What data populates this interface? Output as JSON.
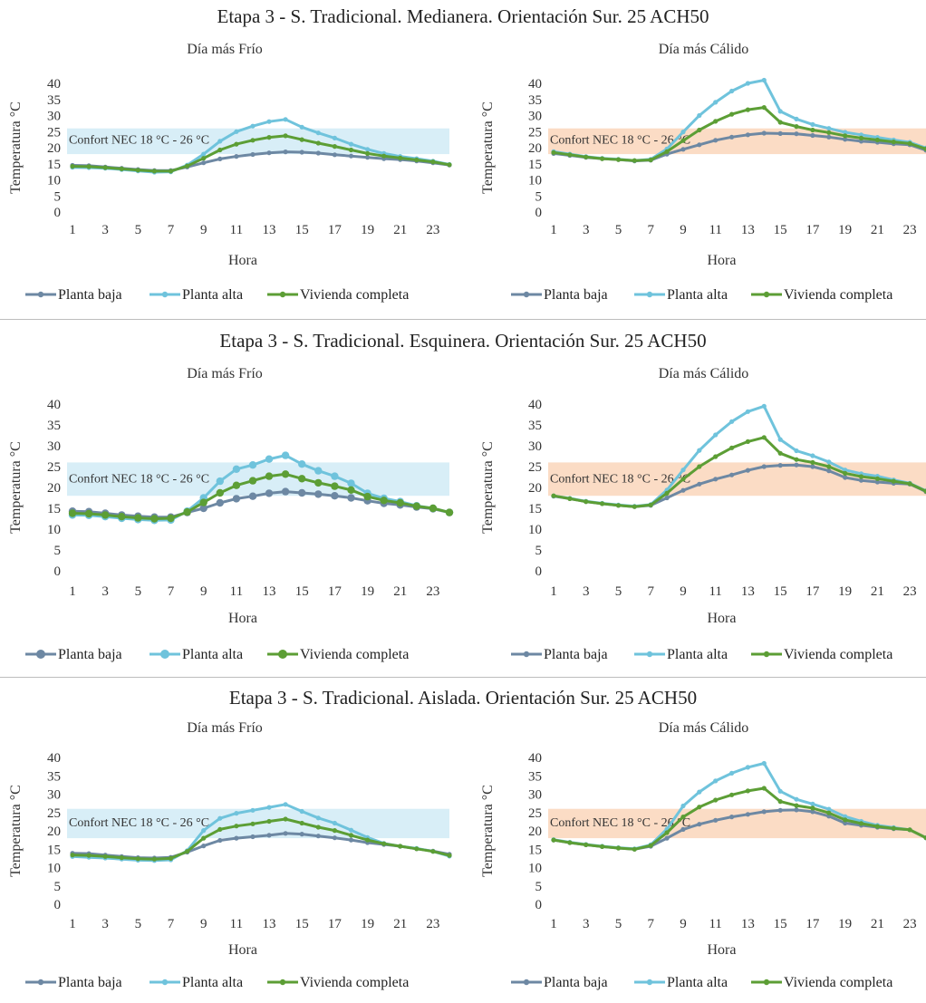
{
  "sections": [
    {
      "title": "Etapa 3 - S. Tradicional. Medianera. Orientación Sur. 25 ACH50"
    },
    {
      "title": "Etapa 3 - S. Tradicional. Esquinera. Orientación Sur. 25 ACH50"
    },
    {
      "title": "Etapa 3 - S. Tradicional. Aislada. Orientación Sur. 25 ACH50"
    }
  ],
  "colors": {
    "planta_baja": "#6d88a3",
    "planta_alta": "#6fc3dc",
    "vivienda_completa": "#5c9e35",
    "comfort_cold": "#d8eef7",
    "comfort_warm": "#fbdcc5"
  },
  "chart_data": [
    {
      "type": "line",
      "title": "Día más Frío",
      "xlabel": "Hora",
      "ylabel": "Temperatura °C",
      "ylim": [
        0,
        40
      ],
      "xlim": [
        1,
        24
      ],
      "legend": "bottom",
      "grid": false,
      "x": [
        1,
        2,
        3,
        4,
        5,
        6,
        7,
        8,
        9,
        10,
        11,
        12,
        13,
        14,
        15,
        16,
        17,
        18,
        19,
        20,
        21,
        22,
        23,
        24
      ],
      "xticks": [
        "1",
        "3",
        "5",
        "7",
        "9",
        "11",
        "13",
        "15",
        "17",
        "19",
        "21",
        "23"
      ],
      "yticks": [
        "0",
        "5",
        "10",
        "15",
        "20",
        "25",
        "30",
        "35",
        "40"
      ],
      "comfort": {
        "label": "Confort NEC 18 °C - 26 °C",
        "range": [
          18,
          26
        ],
        "style": "cold"
      },
      "markers": false,
      "series": [
        {
          "name": "Planta baja",
          "color_key": "planta_baja",
          "values": [
            14.5,
            14.4,
            14.0,
            13.6,
            13.2,
            12.9,
            12.9,
            14.0,
            15.3,
            16.5,
            17.3,
            17.9,
            18.4,
            18.7,
            18.6,
            18.3,
            17.8,
            17.4,
            17.0,
            16.6,
            16.3,
            15.9,
            15.3,
            14.6
          ]
        },
        {
          "name": "Planta alta",
          "color_key": "planta_alta",
          "values": [
            13.9,
            13.8,
            13.6,
            13.2,
            12.8,
            12.4,
            12.5,
            14.6,
            18.0,
            22.0,
            25.0,
            26.7,
            28.1,
            28.8,
            26.4,
            24.6,
            23.0,
            21.1,
            19.5,
            18.2,
            17.3,
            16.6,
            15.8,
            14.8
          ]
        },
        {
          "name": "Vivienda completa",
          "color_key": "vivienda_completa",
          "values": [
            14.2,
            14.1,
            13.8,
            13.4,
            13.0,
            12.7,
            12.7,
            14.3,
            16.7,
            19.3,
            21.1,
            22.3,
            23.2,
            23.7,
            22.5,
            21.4,
            20.4,
            19.3,
            18.2,
            17.4,
            16.8,
            16.2,
            15.6,
            14.7
          ]
        }
      ]
    },
    {
      "type": "line",
      "title": "Día más Cálido",
      "xlabel": "Hora",
      "ylabel": "Temperatura °C",
      "ylim": [
        0,
        40
      ],
      "xlim": [
        1,
        24
      ],
      "legend": "bottom",
      "grid": false,
      "x": [
        1,
        2,
        3,
        4,
        5,
        6,
        7,
        8,
        9,
        10,
        11,
        12,
        13,
        14,
        15,
        16,
        17,
        18,
        19,
        20,
        21,
        22,
        23,
        24
      ],
      "xticks": [
        "1",
        "3",
        "5",
        "7",
        "9",
        "11",
        "13",
        "15",
        "17",
        "19",
        "21",
        "23"
      ],
      "yticks": [
        "0",
        "5",
        "10",
        "15",
        "20",
        "25",
        "30",
        "35",
        "40"
      ],
      "comfort": {
        "label": "Confort NEC 18 °C - 26 °C",
        "range": [
          18,
          26
        ],
        "style": "warm"
      },
      "markers": false,
      "series": [
        {
          "name": "Planta baja",
          "color_key": "planta_baja",
          "values": [
            18.2,
            17.6,
            17.0,
            16.6,
            16.3,
            15.9,
            16.1,
            18.0,
            19.5,
            20.9,
            22.3,
            23.3,
            24.0,
            24.5,
            24.4,
            24.3,
            23.8,
            23.3,
            22.6,
            22.0,
            21.7,
            21.2,
            20.9,
            19.2
          ]
        },
        {
          "name": "Planta alta",
          "color_key": "planta_alta",
          "values": [
            18.8,
            18.0,
            17.2,
            16.7,
            16.4,
            16.0,
            16.4,
            19.6,
            24.9,
            30.0,
            34.1,
            37.6,
            40.0,
            41.0,
            31.3,
            28.9,
            27.2,
            26.0,
            24.8,
            24.0,
            23.2,
            22.4,
            21.7,
            19.9
          ]
        },
        {
          "name": "Vivienda completa",
          "color_key": "vivienda_completa",
          "values": [
            18.5,
            17.8,
            17.1,
            16.6,
            16.3,
            16.0,
            16.2,
            18.8,
            22.2,
            25.5,
            28.2,
            30.4,
            31.8,
            32.5,
            27.9,
            26.6,
            25.5,
            24.7,
            23.7,
            23.0,
            22.4,
            21.8,
            21.3,
            19.6
          ]
        }
      ]
    },
    {
      "type": "line",
      "title": "Día más Frío",
      "xlabel": "Hora",
      "ylabel": "Temperatura °C",
      "ylim": [
        0,
        40
      ],
      "xlim": [
        1,
        24
      ],
      "legend": "bottom",
      "grid": false,
      "x": [
        1,
        2,
        3,
        4,
        5,
        6,
        7,
        8,
        9,
        10,
        11,
        12,
        13,
        14,
        15,
        16,
        17,
        18,
        19,
        20,
        21,
        22,
        23,
        24
      ],
      "xticks": [
        "1",
        "3",
        "5",
        "7",
        "9",
        "11",
        "13",
        "15",
        "17",
        "19",
        "21",
        "23"
      ],
      "yticks": [
        "0",
        "5",
        "10",
        "15",
        "20",
        "25",
        "30",
        "35",
        "40"
      ],
      "comfort": {
        "label": "Confort NEC 18 °C - 26 °C",
        "range": [
          18,
          26
        ],
        "style": "cold"
      },
      "markers": true,
      "series": [
        {
          "name": "Planta baja",
          "color_key": "planta_baja",
          "values": [
            14.3,
            14.2,
            13.8,
            13.4,
            13.1,
            12.9,
            12.9,
            14.0,
            15.0,
            16.3,
            17.3,
            17.9,
            18.6,
            19.0,
            18.7,
            18.4,
            18.0,
            17.5,
            16.8,
            16.2,
            15.8,
            15.3,
            14.9,
            14.0
          ]
        },
        {
          "name": "Planta alta",
          "color_key": "planta_alta",
          "values": [
            13.4,
            13.3,
            13.0,
            12.6,
            12.3,
            12.1,
            12.2,
            14.3,
            17.5,
            21.5,
            24.4,
            25.4,
            26.8,
            27.7,
            25.6,
            24.0,
            22.7,
            21.0,
            18.6,
            17.4,
            16.6,
            15.6,
            15.0,
            14.0
          ]
        },
        {
          "name": "Vivienda completa",
          "color_key": "vivienda_completa",
          "values": [
            13.8,
            13.7,
            13.4,
            13.0,
            12.7,
            12.5,
            12.6,
            14.1,
            16.4,
            18.7,
            20.5,
            21.6,
            22.7,
            23.2,
            22.1,
            21.1,
            20.3,
            19.4,
            17.8,
            16.9,
            16.3,
            15.5,
            15.0,
            14.0
          ]
        }
      ]
    },
    {
      "type": "line",
      "title": "Día más Cálido",
      "xlabel": "Hora",
      "ylabel": "Temperatura °C",
      "ylim": [
        0,
        40
      ],
      "xlim": [
        1,
        24
      ],
      "legend": "bottom",
      "grid": false,
      "x": [
        1,
        2,
        3,
        4,
        5,
        6,
        7,
        8,
        9,
        10,
        11,
        12,
        13,
        14,
        15,
        16,
        17,
        18,
        19,
        20,
        21,
        22,
        23,
        24
      ],
      "xticks": [
        "1",
        "3",
        "5",
        "7",
        "9",
        "11",
        "13",
        "15",
        "17",
        "19",
        "21",
        "23"
      ],
      "yticks": [
        "0",
        "5",
        "10",
        "15",
        "20",
        "25",
        "30",
        "35",
        "40"
      ],
      "comfort": {
        "label": "Confort NEC 18 °C - 26 °C",
        "range": [
          18,
          26
        ],
        "style": "warm"
      },
      "markers": false,
      "series": [
        {
          "name": "Planta baja",
          "color_key": "planta_baja",
          "values": [
            17.9,
            17.3,
            16.6,
            16.1,
            15.7,
            15.4,
            15.7,
            17.5,
            19.3,
            20.8,
            22.0,
            23.0,
            24.1,
            25.0,
            25.3,
            25.4,
            25.0,
            24.0,
            22.4,
            21.7,
            21.3,
            21.0,
            20.8,
            19.0
          ]
        },
        {
          "name": "Planta alta",
          "color_key": "planta_alta",
          "values": [
            18.0,
            17.4,
            16.7,
            16.2,
            15.8,
            15.5,
            15.9,
            19.4,
            24.2,
            28.9,
            32.6,
            35.8,
            38.2,
            39.5,
            31.5,
            28.8,
            27.6,
            26.1,
            24.2,
            23.3,
            22.7,
            21.8,
            21.0,
            19.2
          ]
        },
        {
          "name": "Vivienda completa",
          "color_key": "vivienda_completa",
          "values": [
            18.0,
            17.3,
            16.6,
            16.1,
            15.7,
            15.4,
            15.8,
            18.6,
            22.0,
            25.0,
            27.4,
            29.5,
            31.0,
            32.0,
            28.2,
            26.7,
            26.0,
            25.0,
            23.4,
            22.6,
            22.1,
            21.5,
            20.9,
            19.1
          ]
        }
      ]
    },
    {
      "type": "line",
      "title": "Día más Frío",
      "xlabel": "Hora",
      "ylabel": "Temperatura °C",
      "ylim": [
        0,
        40
      ],
      "xlim": [
        1,
        24
      ],
      "legend": "bottom",
      "grid": false,
      "x": [
        1,
        2,
        3,
        4,
        5,
        6,
        7,
        8,
        9,
        10,
        11,
        12,
        13,
        14,
        15,
        16,
        17,
        18,
        19,
        20,
        21,
        22,
        23,
        24
      ],
      "xticks": [
        "1",
        "3",
        "5",
        "7",
        "9",
        "11",
        "13",
        "15",
        "17",
        "19",
        "21",
        "23"
      ],
      "yticks": [
        "0",
        "5",
        "10",
        "15",
        "20",
        "25",
        "30",
        "35",
        "40"
      ],
      "comfort": {
        "label": "Confort NEC 18 °C - 26 °C",
        "range": [
          18,
          26
        ],
        "style": "cold"
      },
      "markers": false,
      "series": [
        {
          "name": "Planta baja",
          "color_key": "planta_baja",
          "values": [
            13.9,
            13.8,
            13.4,
            13.0,
            12.7,
            12.6,
            12.8,
            14.2,
            15.9,
            17.4,
            18.0,
            18.4,
            18.8,
            19.3,
            19.1,
            18.6,
            18.1,
            17.5,
            16.8,
            16.3,
            15.8,
            15.1,
            14.5,
            13.6
          ]
        },
        {
          "name": "Planta alta",
          "color_key": "planta_alta",
          "values": [
            13.0,
            12.8,
            12.6,
            12.3,
            12.0,
            11.9,
            12.1,
            14.6,
            20.1,
            23.4,
            24.8,
            25.6,
            26.4,
            27.2,
            25.3,
            23.5,
            22.1,
            20.2,
            18.2,
            16.6,
            15.8,
            15.2,
            14.4,
            13.1
          ]
        },
        {
          "name": "Vivienda completa",
          "color_key": "vivienda_completa",
          "values": [
            13.4,
            13.3,
            13.0,
            12.7,
            12.4,
            12.3,
            12.5,
            14.4,
            18.0,
            20.4,
            21.3,
            21.9,
            22.6,
            23.2,
            22.1,
            21.0,
            20.1,
            18.8,
            17.5,
            16.5,
            15.8,
            15.1,
            14.4,
            13.3
          ]
        }
      ]
    },
    {
      "type": "line",
      "title": "Día más Cálido",
      "xlabel": "Hora",
      "ylabel": "Temperatura °C",
      "ylim": [
        0,
        40
      ],
      "xlim": [
        1,
        24
      ],
      "legend": "bottom",
      "grid": false,
      "x": [
        1,
        2,
        3,
        4,
        5,
        6,
        7,
        8,
        9,
        10,
        11,
        12,
        13,
        14,
        15,
        16,
        17,
        18,
        19,
        20,
        21,
        22,
        23,
        24
      ],
      "xticks": [
        "1",
        "3",
        "5",
        "7",
        "9",
        "11",
        "13",
        "15",
        "17",
        "19",
        "21",
        "23"
      ],
      "yticks": [
        "0",
        "5",
        "10",
        "15",
        "20",
        "25",
        "30",
        "35",
        "40"
      ],
      "comfort": {
        "label": "Confort NEC 18 °C - 26 °C",
        "range": [
          18,
          26
        ],
        "style": "warm"
      },
      "markers": false,
      "series": [
        {
          "name": "Planta baja",
          "color_key": "planta_baja",
          "values": [
            17.5,
            16.8,
            16.2,
            15.7,
            15.3,
            15.0,
            15.8,
            18.0,
            20.4,
            21.8,
            22.9,
            23.8,
            24.5,
            25.2,
            25.6,
            25.7,
            25.2,
            24.0,
            22.1,
            21.5,
            21.0,
            20.6,
            20.3,
            18.1
          ]
        },
        {
          "name": "Planta alta",
          "color_key": "planta_alta",
          "values": [
            17.6,
            16.9,
            16.3,
            15.8,
            15.4,
            15.1,
            16.2,
            20.5,
            26.8,
            30.6,
            33.6,
            35.7,
            37.3,
            38.4,
            30.8,
            28.6,
            27.3,
            25.9,
            23.9,
            22.6,
            21.5,
            20.9,
            20.3,
            18.1
          ]
        },
        {
          "name": "Vivienda completa",
          "color_key": "vivienda_completa",
          "values": [
            17.5,
            16.8,
            16.2,
            15.7,
            15.3,
            15.0,
            16.0,
            19.5,
            23.8,
            26.5,
            28.4,
            29.8,
            30.9,
            31.6,
            28.0,
            26.9,
            26.2,
            24.9,
            23.0,
            22.0,
            21.2,
            20.7,
            20.3,
            18.1
          ]
        }
      ]
    }
  ]
}
